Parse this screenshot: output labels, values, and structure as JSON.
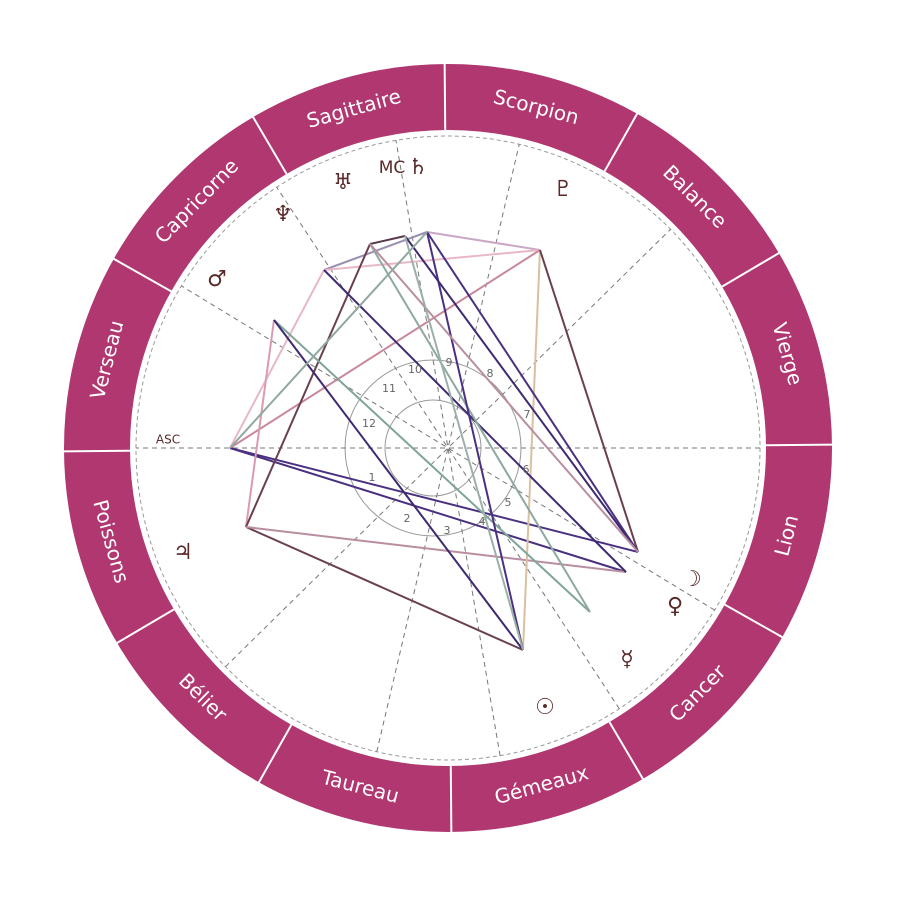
{
  "signs": [
    "Vierge",
    "Balance",
    "Scorpion",
    "Sagittaire",
    "Capricorne",
    "Verseau",
    "Poissons",
    "Bélier",
    "Taureau",
    "Gémeaux",
    "Cancer",
    "Lion"
  ],
  "angles": {
    "asc": "ASC",
    "mc": "MC"
  },
  "planets": [
    {
      "glyph": "♄"
    },
    {
      "glyph": "♅"
    },
    {
      "glyph": "♆"
    },
    {
      "glyph": "♂"
    },
    {
      "glyph": "♇"
    },
    {
      "glyph": "☽"
    },
    {
      "glyph": "♀"
    },
    {
      "glyph": "☿"
    },
    {
      "glyph": "☉"
    },
    {
      "glyph": "♃"
    }
  ],
  "houses": [
    "1",
    "2",
    "3",
    "4",
    "5",
    "6",
    "7",
    "8",
    "9",
    "10",
    "11",
    "12"
  ]
}
